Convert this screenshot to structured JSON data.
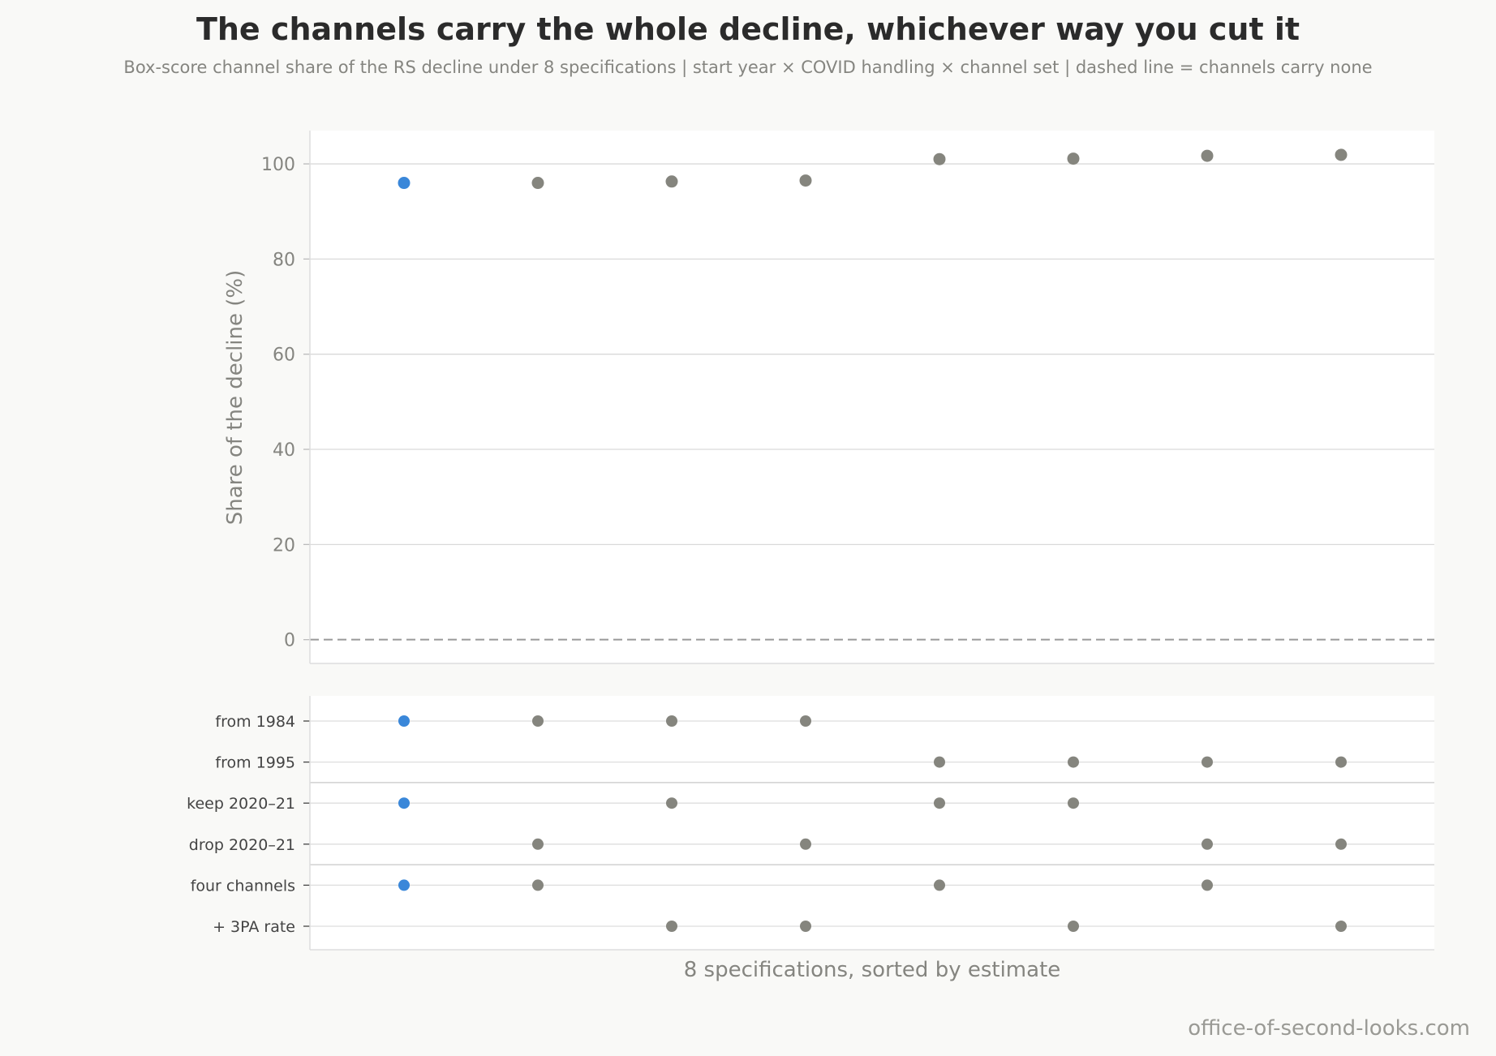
{
  "chart_data": {
    "type": "scatter",
    "title": "The channels carry the whole decline, whichever way you cut it",
    "subtitle": "Box-score channel share of the RS decline under 8 specifications  |  start year × COVID handling × channel set  |  dashed line = channels carry none",
    "ylabel": "Share of the decline (%)",
    "xlabel": "8 specifications, sorted by estimate",
    "ylim": [
      -5,
      107
    ],
    "yticks": [
      0,
      20,
      40,
      60,
      80,
      100
    ],
    "reference_line": 0,
    "grid": true,
    "specifications": [
      1,
      2,
      3,
      4,
      5,
      6,
      7,
      8
    ],
    "values": [
      96.0,
      96.0,
      96.3,
      96.5,
      101.0,
      101.1,
      101.7,
      101.9
    ],
    "highlight_index": 0,
    "highlight_color": "#3a87d9",
    "point_color": "#85857e",
    "spec_rows": [
      {
        "label": "from 1984",
        "active": [
          1,
          1,
          1,
          1,
          0,
          0,
          0,
          0
        ]
      },
      {
        "label": "from 1995",
        "active": [
          0,
          0,
          0,
          0,
          1,
          1,
          1,
          1
        ]
      },
      {
        "label": "keep 2020–21",
        "active": [
          1,
          0,
          1,
          0,
          1,
          1,
          0,
          0
        ]
      },
      {
        "label": "drop 2020–21",
        "active": [
          0,
          1,
          0,
          1,
          0,
          0,
          1,
          1
        ]
      },
      {
        "label": "four channels",
        "active": [
          1,
          1,
          0,
          0,
          1,
          0,
          1,
          0
        ]
      },
      {
        "label": "+ 3PA rate",
        "active": [
          0,
          0,
          1,
          1,
          0,
          1,
          0,
          1
        ]
      }
    ]
  },
  "footer": {
    "credit": "office-of-second-looks.com"
  }
}
